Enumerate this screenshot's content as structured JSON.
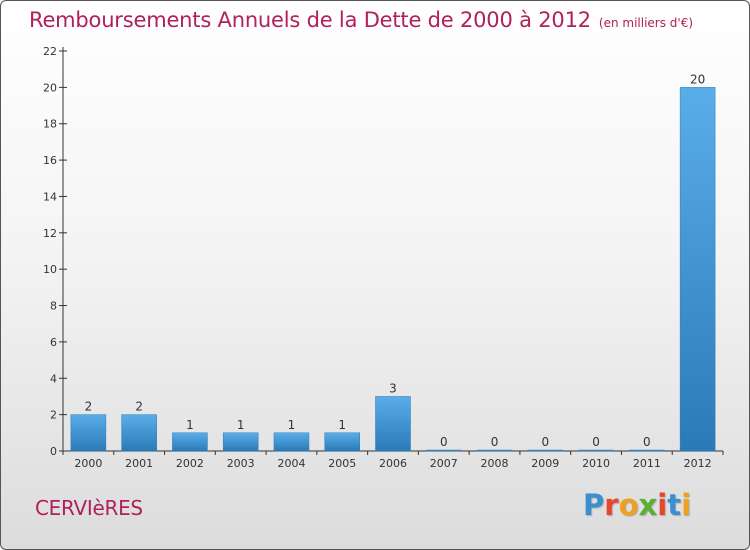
{
  "title": "Remboursements Annuels de la Dette de 2000 à 2012",
  "unit": "(en milliers d'€)",
  "commune": "CERVIèRES",
  "logo": {
    "text": "Proxiti",
    "letter_colors": [
      "#3a8fd0",
      "#e8452a",
      "#f0a020",
      "#5ab030",
      "#e8452a",
      "#3a8fd0",
      "#f0a020"
    ]
  },
  "colors": {
    "accent": "#b0205a",
    "bar_top": "#5aaee8",
    "bar_bottom": "#2a7ab8"
  },
  "chart_data": {
    "type": "bar",
    "title": "Remboursements Annuels de la Dette de 2000 à 2012",
    "xlabel": "",
    "ylabel": "",
    "categories": [
      "2000",
      "2001",
      "2002",
      "2003",
      "2004",
      "2005",
      "2006",
      "2007",
      "2008",
      "2009",
      "2010",
      "2011",
      "2012"
    ],
    "values": [
      2,
      2,
      1,
      1,
      1,
      1,
      3,
      0,
      0,
      0,
      0,
      0,
      20
    ],
    "ylim": [
      0,
      22
    ],
    "yticks": [
      0,
      2,
      4,
      6,
      8,
      10,
      12,
      14,
      16,
      18,
      20,
      22
    ],
    "grid": false,
    "data_labels": true
  }
}
